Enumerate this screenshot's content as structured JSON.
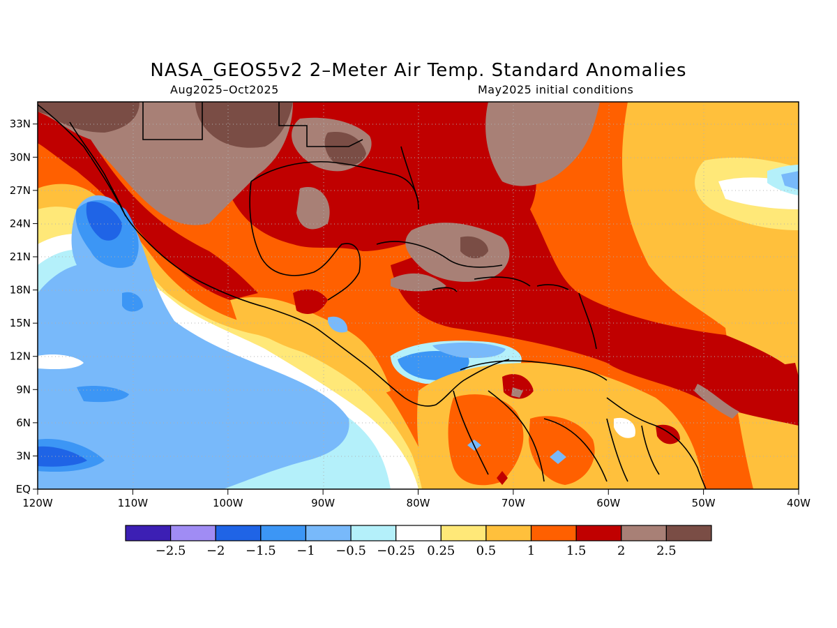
{
  "title": "NASA_GEOS5v2 2–Meter Air Temp. Standard Anomalies",
  "subtitle_left": "Aug2025–Oct2025",
  "subtitle_right": "May2025 initial conditions",
  "map": {
    "lon_range": [
      -120,
      -40
    ],
    "lat_range": [
      0,
      35
    ],
    "x_ticks": [
      "120W",
      "110W",
      "100W",
      "90W",
      "80W",
      "70W",
      "60W",
      "50W",
      "40W"
    ],
    "y_ticks": [
      "EQ",
      "3N",
      "6N",
      "9N",
      "12N",
      "15N",
      "18N",
      "21N",
      "24N",
      "27N",
      "30N",
      "33N"
    ]
  },
  "colorbar": {
    "colors": [
      "#3c1fb4",
      "#a08cf4",
      "#1f64e6",
      "#3c96f5",
      "#78b9fa",
      "#b4f0fa",
      "#ffffff",
      "#ffe878",
      "#ffc03c",
      "#ff6000",
      "#c00000",
      "#a88076",
      "#7a4d45"
    ],
    "labels": [
      "−2.5",
      "−2",
      "−1.5",
      "−1",
      "−0.5",
      "−0.25",
      "0.25",
      "0.5",
      "1",
      "1.5",
      "2",
      "2.5"
    ]
  }
}
